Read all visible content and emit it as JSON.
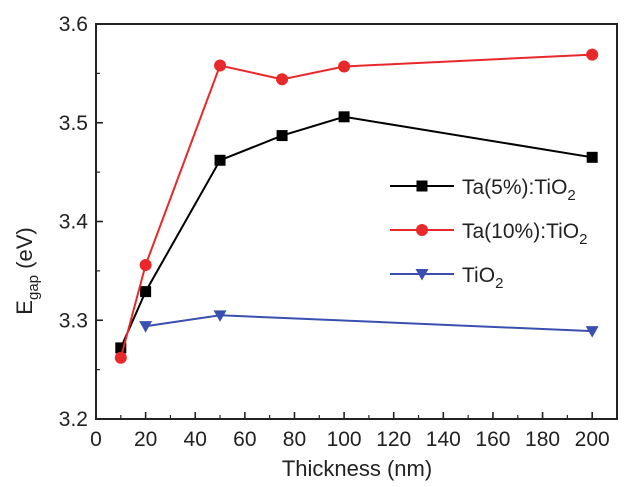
{
  "chart_data": {
    "type": "line",
    "xlabel": "Thickness (nm)",
    "ylabel": {
      "main": "E",
      "sub": "gap",
      "rest": " (eV)"
    },
    "xlim": [
      0,
      210
    ],
    "ylim": [
      3.2,
      3.6
    ],
    "xticks": [
      0,
      20,
      40,
      60,
      80,
      100,
      120,
      140,
      160,
      180,
      200
    ],
    "yticks": [
      3.2,
      3.3,
      3.4,
      3.5,
      3.6
    ],
    "xtick_labels": [
      "0",
      "20",
      "40",
      "60",
      "80",
      "100",
      "120",
      "140",
      "160",
      "180",
      "200"
    ],
    "ytick_labels": [
      "3.2",
      "3.3",
      "3.4",
      "3.5",
      "3.6"
    ],
    "grid": false,
    "legend_position": "center-right",
    "series": [
      {
        "name_main": "Ta(5%):TiO",
        "name_sub": "2",
        "color": "#000000",
        "marker": "square",
        "x": [
          10,
          20,
          50,
          75,
          100,
          200
        ],
        "y": [
          3.272,
          3.329,
          3.462,
          3.487,
          3.506,
          3.465
        ]
      },
      {
        "name_main": "Ta(10%):TiO",
        "name_sub": "2",
        "color": "#e8282b",
        "marker": "circle",
        "x": [
          10,
          20,
          50,
          75,
          100,
          200
        ],
        "y": [
          3.262,
          3.356,
          3.558,
          3.544,
          3.557,
          3.569
        ]
      },
      {
        "name_main": "TiO",
        "name_sub": "2",
        "color": "#3b4fb0",
        "marker": "triangle-down",
        "x": [
          20,
          50,
          200
        ],
        "y": [
          3.294,
          3.305,
          3.289
        ]
      }
    ]
  }
}
